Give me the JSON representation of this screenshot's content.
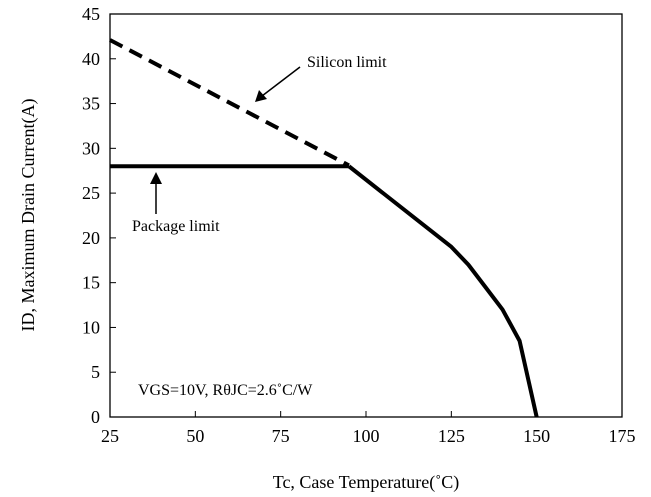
{
  "chart_data": {
    "type": "line",
    "title": "",
    "xlabel": "Tc, Case Temperature(˚C)",
    "ylabel": "ID, Maximum Drain Current(A)",
    "xlim": [
      25,
      175
    ],
    "ylim": [
      0,
      45
    ],
    "x_ticks": [
      "25",
      "50",
      "75",
      "100",
      "125",
      "150",
      "175"
    ],
    "y_ticks": [
      "0",
      "5",
      "10",
      "15",
      "20",
      "25",
      "30",
      "35",
      "40",
      "45"
    ],
    "grid": false,
    "series": [
      {
        "name": "Silicon limit",
        "style": "dashed",
        "x": [
          25,
          95
        ],
        "y": [
          42.1,
          28.1
        ]
      },
      {
        "name": "Package limit",
        "style": "solid",
        "x": [
          25,
          95
        ],
        "y": [
          28,
          28
        ]
      },
      {
        "name": "",
        "style": "solid",
        "x": [
          95,
          125,
          130,
          135,
          140,
          145,
          150
        ],
        "y": [
          28,
          19,
          17,
          14.5,
          12,
          8.5,
          0
        ]
      }
    ],
    "annotations": [
      {
        "label": "Silicon limit",
        "text_x": 150,
        "text_y": 0,
        "arrow_to_x": 68,
        "arrow_to_y": 35.5
      },
      {
        "label": "Package limit",
        "text_x": 0,
        "text_y": 0,
        "arrow_to_x": 38,
        "arrow_to_y": 27.5
      },
      {
        "label": "VGS=10V, RθJC=2.6˚C/W"
      }
    ]
  }
}
